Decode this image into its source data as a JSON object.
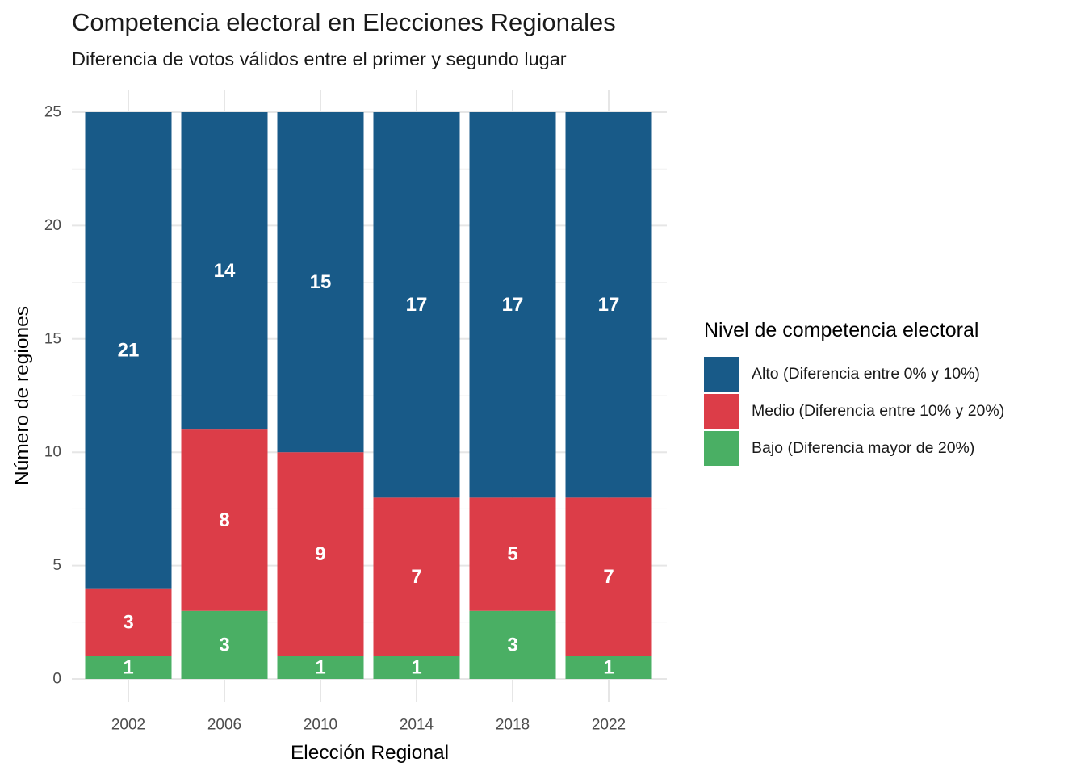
{
  "chart_data": {
    "type": "bar",
    "stacked": true,
    "title": "Competencia electoral en Elecciones Regionales",
    "subtitle": "Diferencia de votos válidos entre el primer y segundo lugar",
    "xlabel": "Elección Regional",
    "ylabel": "Número de regiones",
    "categories": [
      "2002",
      "2006",
      "2010",
      "2014",
      "2018",
      "2022"
    ],
    "ylim": [
      0,
      25
    ],
    "yticks": [
      0,
      5,
      10,
      15,
      20,
      25
    ],
    "grid": true,
    "legend_title": "Nivel de competencia electoral",
    "legend_position": "right",
    "series": [
      {
        "name": "Bajo (Diferencia mayor de 20%)",
        "color": "#4aaf64",
        "values": [
          1,
          3,
          1,
          1,
          3,
          1
        ]
      },
      {
        "name": "Medio (Diferencia entre 10% y 20%)",
        "color": "#dc3d48",
        "values": [
          3,
          8,
          9,
          7,
          5,
          7
        ]
      },
      {
        "name": "Alto (Diferencia entre 0% y 10%)",
        "color": "#185a88",
        "values": [
          21,
          14,
          15,
          17,
          17,
          17
        ]
      }
    ],
    "legend_order": [
      2,
      1,
      0
    ]
  }
}
